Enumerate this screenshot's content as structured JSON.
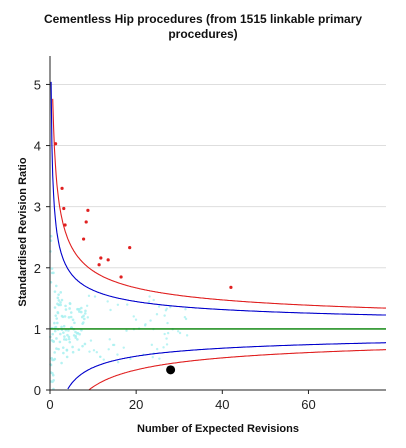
{
  "chart_data": {
    "type": "scatter",
    "title_line1": "Cementless Hip procedures (from 1515 linkable primary",
    "title_line2": "procedures)",
    "xlabel": "Number of Expected Revisions",
    "ylabel": "Standardised Revision Ratio",
    "xlim": [
      0,
      78
    ],
    "ylim": [
      0,
      5.4
    ],
    "x_ticks": [
      "0",
      "20",
      "40",
      "60"
    ],
    "x_tick_values": [
      0,
      20,
      40,
      60
    ],
    "y_ticks": [
      "0",
      "1",
      "2",
      "3",
      "4",
      "5"
    ],
    "y_tick_values": [
      0,
      1,
      2,
      3,
      4,
      5
    ],
    "grid": "horizontal",
    "reference_line": 1,
    "colors": {
      "reference": "#008000",
      "inner_limits": "#0000cc",
      "outer_limits": "#e02020",
      "outliers": "#e02020",
      "background_units": "#a8f0f0",
      "highlight": "#000000"
    },
    "series": [
      {
        "role": "outliers",
        "points": [
          [
            1.3,
            4.03
          ],
          [
            2.8,
            3.3
          ],
          [
            3.2,
            2.97
          ],
          [
            3.5,
            2.7
          ],
          [
            7.8,
            2.47
          ],
          [
            8.4,
            2.75
          ],
          [
            8.8,
            2.94
          ],
          [
            11.4,
            2.05
          ],
          [
            11.8,
            2.16
          ],
          [
            13.5,
            2.13
          ],
          [
            16.5,
            1.85
          ],
          [
            18.5,
            2.33
          ],
          [
            42,
            1.68
          ]
        ]
      },
      {
        "role": "highlighted-unit",
        "points": [
          [
            28,
            0.33
          ]
        ]
      }
    ]
  }
}
